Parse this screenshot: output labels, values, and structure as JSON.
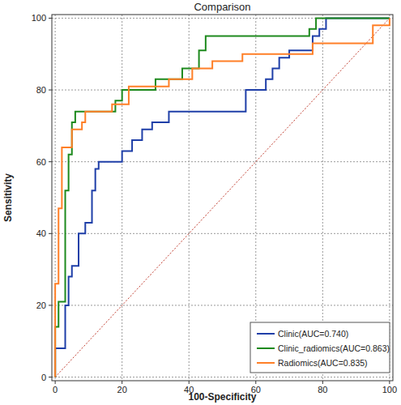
{
  "chart_data": {
    "type": "line",
    "title": "Comparison",
    "x_label": "100-Specificity",
    "y_label": "Sensitivity",
    "xlim": [
      -1,
      101
    ],
    "ylim": [
      -1,
      101
    ],
    "xticks": [
      0,
      20,
      40,
      60,
      80,
      100
    ],
    "yticks": [
      0,
      20,
      40,
      60,
      80,
      100
    ],
    "grid": true,
    "legend": "lower right",
    "series": [
      {
        "name": "Clinic(AUC=0.740)",
        "color": "#1f3fa8",
        "line_style": "solid",
        "x": [
          0,
          0,
          3,
          3,
          4,
          4,
          5,
          5,
          7,
          7,
          9,
          9,
          11,
          11,
          12,
          12,
          13,
          13,
          20,
          20,
          23,
          23,
          26,
          26,
          29,
          29,
          34,
          34,
          57,
          57,
          63,
          63,
          65,
          65,
          67,
          67,
          70,
          70,
          77,
          77,
          79,
          79,
          81,
          81,
          100
        ],
        "values": [
          0,
          8,
          8,
          20,
          20,
          28,
          28,
          31,
          31,
          40,
          40,
          43,
          43,
          52,
          52,
          58,
          58,
          60,
          60,
          63,
          63,
          66,
          66,
          69,
          69,
          71,
          71,
          74,
          74,
          80,
          80,
          83,
          83,
          86,
          86,
          89,
          89,
          91,
          91,
          95,
          95,
          97,
          97,
          100,
          100
        ]
      },
      {
        "name": "Clinic_radiomics(AUC=0.863)",
        "color": "#1e8a1e",
        "line_style": "solid",
        "x": [
          0,
          0,
          1,
          1,
          3,
          3,
          4,
          4,
          5,
          5,
          6,
          6,
          18,
          18,
          20,
          20,
          30,
          30,
          38,
          38,
          43,
          43,
          45,
          45,
          76,
          76,
          78,
          78,
          100
        ],
        "values": [
          0,
          14,
          14,
          21,
          21,
          52,
          52,
          62,
          62,
          71,
          71,
          74,
          74,
          77,
          77,
          80,
          80,
          83,
          83,
          86,
          86,
          91,
          91,
          95,
          95,
          97,
          97,
          100,
          100
        ]
      },
      {
        "name": "Radiomics(AUC=0.835)",
        "color": "#ff7f27",
        "line_style": "solid",
        "x": [
          0,
          0,
          1,
          1,
          2,
          2,
          5,
          5,
          8,
          8,
          9,
          9,
          17,
          17,
          22,
          22,
          34,
          34,
          41,
          41,
          47,
          47,
          56,
          56,
          77,
          77,
          95,
          95,
          100,
          100
        ],
        "values": [
          0,
          26,
          26,
          47,
          47,
          64,
          64,
          69,
          69,
          71,
          71,
          74,
          74,
          76,
          76,
          81,
          81,
          83,
          83,
          86,
          86,
          88,
          88,
          90,
          90,
          93,
          93,
          98,
          98,
          100
        ]
      }
    ]
  }
}
